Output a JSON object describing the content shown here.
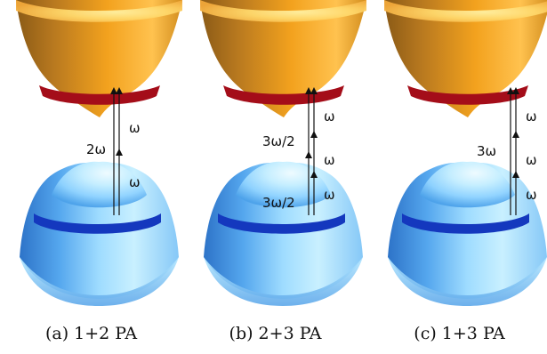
{
  "colors": {
    "conduction_band_light": "#f8b631",
    "conduction_band_dark": "#8a5a16",
    "conduction_ring": "#a40d19",
    "valence_band_light": "#d9f3ff",
    "valence_band_dark": "#3487d5",
    "valence_ring": "#1438be",
    "arrow": "#111111"
  },
  "panels": [
    {
      "caption": "(a) 1+2 PA",
      "left_labels": [
        "2ω"
      ],
      "right_labels": [
        "ω",
        "ω"
      ]
    },
    {
      "caption": "(b) 2+3 PA",
      "left_labels": [
        "3ω/2",
        "3ω/2"
      ],
      "right_labels": [
        "ω",
        "ω",
        "ω"
      ]
    },
    {
      "caption": "(c) 1+3 PA",
      "left_labels": [
        "3ω"
      ],
      "right_labels": [
        "ω",
        "ω",
        "ω"
      ]
    }
  ]
}
